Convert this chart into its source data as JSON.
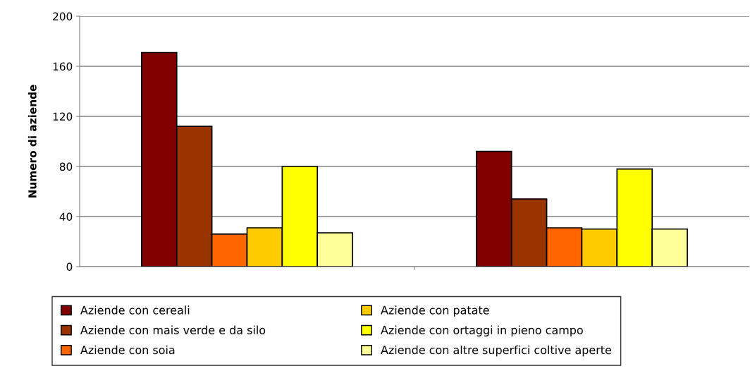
{
  "chart_data": {
    "type": "bar",
    "ylabel": "Numero di aziende",
    "categories": [
      null,
      null
    ],
    "ylim": [
      0,
      200
    ],
    "yticks": [
      0,
      40,
      80,
      120,
      160,
      200
    ],
    "grid": "y",
    "legend": "bottom",
    "series": [
      {
        "name": "Aziende con cereali",
        "color": "#800000",
        "values": [
          171,
          92
        ]
      },
      {
        "name": "Aziende con mais verde e da silo",
        "color": "#993300",
        "values": [
          112,
          54
        ]
      },
      {
        "name": "Aziende con soia",
        "color": "#ff6600",
        "values": [
          26,
          31
        ]
      },
      {
        "name": "Aziende con patate",
        "color": "#ffcc00",
        "values": [
          31,
          30
        ]
      },
      {
        "name": "Aziende con ortaggi in pieno campo",
        "color": "#ffff00",
        "values": [
          80,
          78
        ]
      },
      {
        "name": "Aziende con altre superfici coltive aperte",
        "color": "#ffff99",
        "values": [
          27,
          30
        ]
      }
    ]
  }
}
